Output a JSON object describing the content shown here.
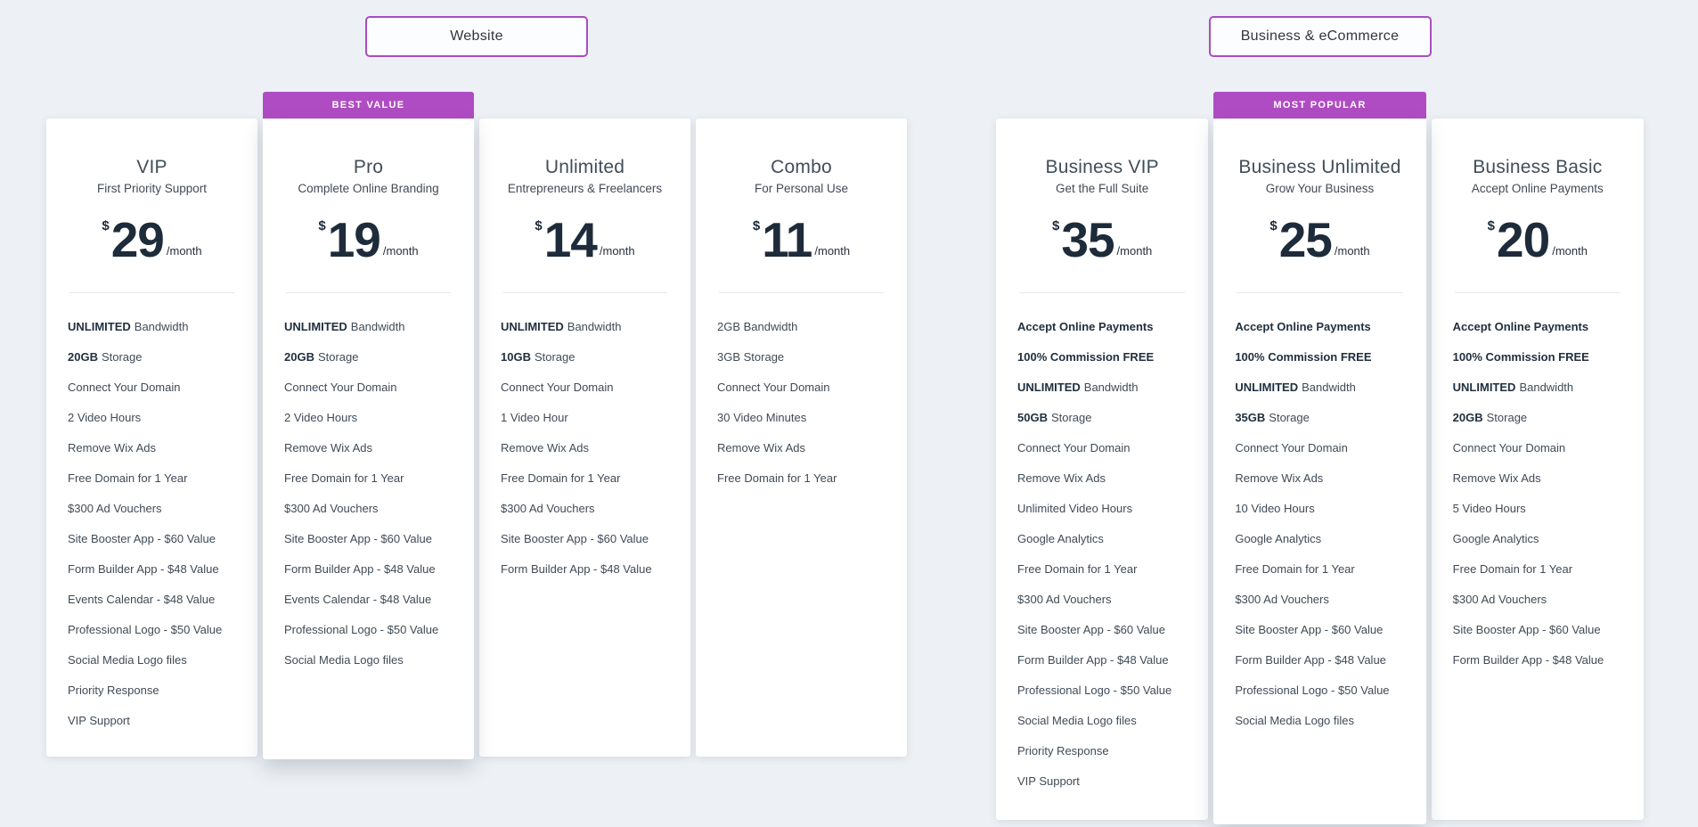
{
  "theme": {
    "accent_purple": "#a94dc0",
    "badge_purple": "#b04cc3",
    "page_background": "#edf1f5",
    "card_background": "#ffffff",
    "price_text": "#1d2b3a",
    "body_text": "#3f4b57"
  },
  "sections": [
    {
      "id": "website",
      "button_label": "Website",
      "plans": [
        {
          "name": "VIP",
          "tagline": "First Priority Support",
          "badge": null,
          "currency": "$",
          "price": "29",
          "period": "/month",
          "features": [
            {
              "bold": "UNLIMITED",
              "rest": "Bandwidth"
            },
            {
              "bold": "20GB",
              "rest": "Storage"
            },
            {
              "bold": "",
              "rest": "Connect Your Domain"
            },
            {
              "bold": "",
              "rest": "2 Video Hours"
            },
            {
              "bold": "",
              "rest": "Remove Wix Ads"
            },
            {
              "bold": "",
              "rest": "Free Domain for 1 Year"
            },
            {
              "bold": "",
              "rest": "$300 Ad Vouchers"
            },
            {
              "bold": "",
              "rest": "Site Booster App - $60 Value"
            },
            {
              "bold": "",
              "rest": "Form Builder App - $48 Value"
            },
            {
              "bold": "",
              "rest": "Events Calendar - $48 Value"
            },
            {
              "bold": "",
              "rest": "Professional Logo - $50 Value"
            },
            {
              "bold": "",
              "rest": "Social Media Logo files"
            },
            {
              "bold": "",
              "rest": "Priority Response"
            },
            {
              "bold": "",
              "rest": "VIP Support"
            }
          ]
        },
        {
          "name": "Pro",
          "tagline": "Complete Online Branding",
          "badge": "BEST VALUE",
          "currency": "$",
          "price": "19",
          "period": "/month",
          "features": [
            {
              "bold": "UNLIMITED",
              "rest": "Bandwidth"
            },
            {
              "bold": "20GB",
              "rest": "Storage"
            },
            {
              "bold": "",
              "rest": "Connect Your Domain"
            },
            {
              "bold": "",
              "rest": "2 Video Hours"
            },
            {
              "bold": "",
              "rest": "Remove Wix Ads"
            },
            {
              "bold": "",
              "rest": "Free Domain for 1 Year"
            },
            {
              "bold": "",
              "rest": "$300 Ad Vouchers"
            },
            {
              "bold": "",
              "rest": "Site Booster App - $60 Value"
            },
            {
              "bold": "",
              "rest": "Form Builder App - $48 Value"
            },
            {
              "bold": "",
              "rest": "Events Calendar - $48 Value"
            },
            {
              "bold": "",
              "rest": "Professional Logo - $50 Value"
            },
            {
              "bold": "",
              "rest": "Social Media Logo files"
            }
          ]
        },
        {
          "name": "Unlimited",
          "tagline": "Entrepreneurs & Freelancers",
          "badge": null,
          "currency": "$",
          "price": "14",
          "period": "/month",
          "features": [
            {
              "bold": "UNLIMITED",
              "rest": "Bandwidth"
            },
            {
              "bold": "10GB",
              "rest": "Storage"
            },
            {
              "bold": "",
              "rest": "Connect Your Domain"
            },
            {
              "bold": "",
              "rest": "1 Video Hour"
            },
            {
              "bold": "",
              "rest": "Remove Wix Ads"
            },
            {
              "bold": "",
              "rest": "Free Domain for 1 Year"
            },
            {
              "bold": "",
              "rest": "$300 Ad Vouchers"
            },
            {
              "bold": "",
              "rest": "Site Booster App - $60 Value"
            },
            {
              "bold": "",
              "rest": "Form Builder App - $48 Value"
            }
          ]
        },
        {
          "name": "Combo",
          "tagline": "For Personal Use",
          "badge": null,
          "currency": "$",
          "price": "11",
          "period": "/month",
          "features": [
            {
              "bold": "",
              "rest": "2GB Bandwidth"
            },
            {
              "bold": "",
              "rest": "3GB Storage"
            },
            {
              "bold": "",
              "rest": "Connect Your Domain"
            },
            {
              "bold": "",
              "rest": "30 Video Minutes"
            },
            {
              "bold": "",
              "rest": "Remove Wix Ads"
            },
            {
              "bold": "",
              "rest": "Free Domain for 1 Year"
            }
          ]
        }
      ]
    },
    {
      "id": "business",
      "button_label": "Business & eCommerce",
      "plans": [
        {
          "name": "Business VIP",
          "tagline": "Get the Full Suite",
          "badge": null,
          "currency": "$",
          "price": "35",
          "period": "/month",
          "features": [
            {
              "bold": "Accept Online Payments",
              "rest": ""
            },
            {
              "bold": "100% Commission FREE",
              "rest": ""
            },
            {
              "bold": "UNLIMITED",
              "rest": "Bandwidth"
            },
            {
              "bold": "50GB",
              "rest": "Storage"
            },
            {
              "bold": "",
              "rest": "Connect Your Domain"
            },
            {
              "bold": "",
              "rest": "Remove Wix Ads"
            },
            {
              "bold": "",
              "rest": "Unlimited Video Hours"
            },
            {
              "bold": "",
              "rest": "Google Analytics"
            },
            {
              "bold": "",
              "rest": "Free Domain for 1 Year"
            },
            {
              "bold": "",
              "rest": "$300 Ad Vouchers"
            },
            {
              "bold": "",
              "rest": "Site Booster App - $60 Value"
            },
            {
              "bold": "",
              "rest": "Form Builder App - $48 Value"
            },
            {
              "bold": "",
              "rest": "Professional Logo - $50 Value"
            },
            {
              "bold": "",
              "rest": "Social Media Logo files"
            },
            {
              "bold": "",
              "rest": "Priority Response"
            },
            {
              "bold": "",
              "rest": "VIP Support"
            }
          ]
        },
        {
          "name": "Business Unlimited",
          "tagline": "Grow Your Business",
          "badge": "MOST POPULAR",
          "currency": "$",
          "price": "25",
          "period": "/month",
          "features": [
            {
              "bold": "Accept Online Payments",
              "rest": ""
            },
            {
              "bold": "100% Commission FREE",
              "rest": ""
            },
            {
              "bold": "UNLIMITED",
              "rest": "Bandwidth"
            },
            {
              "bold": "35GB",
              "rest": "Storage"
            },
            {
              "bold": "",
              "rest": "Connect Your Domain"
            },
            {
              "bold": "",
              "rest": "Remove Wix Ads"
            },
            {
              "bold": "",
              "rest": "10 Video Hours"
            },
            {
              "bold": "",
              "rest": "Google Analytics"
            },
            {
              "bold": "",
              "rest": "Free Domain for 1 Year"
            },
            {
              "bold": "",
              "rest": "$300 Ad Vouchers"
            },
            {
              "bold": "",
              "rest": "Site Booster App - $60 Value"
            },
            {
              "bold": "",
              "rest": "Form Builder App - $48 Value"
            },
            {
              "bold": "",
              "rest": "Professional Logo - $50 Value"
            },
            {
              "bold": "",
              "rest": "Social Media Logo files"
            }
          ]
        },
        {
          "name": "Business Basic",
          "tagline": "Accept Online Payments",
          "badge": null,
          "currency": "$",
          "price": "20",
          "period": "/month",
          "features": [
            {
              "bold": "Accept Online Payments",
              "rest": ""
            },
            {
              "bold": "100% Commission FREE",
              "rest": ""
            },
            {
              "bold": "UNLIMITED",
              "rest": "Bandwidth"
            },
            {
              "bold": "20GB",
              "rest": "Storage"
            },
            {
              "bold": "",
              "rest": "Connect Your Domain"
            },
            {
              "bold": "",
              "rest": "Remove Wix Ads"
            },
            {
              "bold": "",
              "rest": "5 Video Hours"
            },
            {
              "bold": "",
              "rest": "Google Analytics"
            },
            {
              "bold": "",
              "rest": "Free Domain for 1 Year"
            },
            {
              "bold": "",
              "rest": "$300 Ad Vouchers"
            },
            {
              "bold": "",
              "rest": "Site Booster App - $60 Value"
            },
            {
              "bold": "",
              "rest": "Form Builder App - $48 Value"
            }
          ]
        }
      ]
    }
  ]
}
